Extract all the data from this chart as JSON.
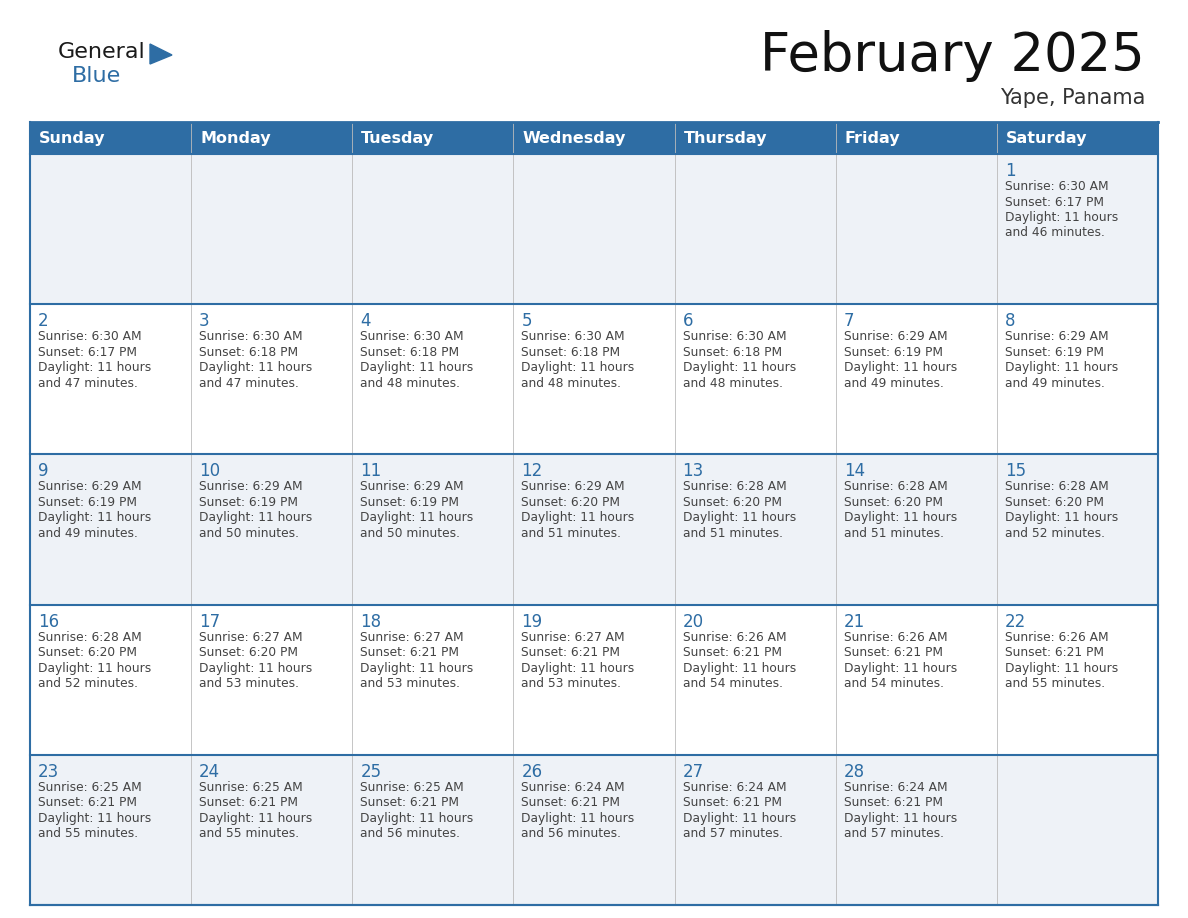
{
  "title": "February 2025",
  "subtitle": "Yape, Panama",
  "days_of_week": [
    "Sunday",
    "Monday",
    "Tuesday",
    "Wednesday",
    "Thursday",
    "Friday",
    "Saturday"
  ],
  "header_bg": "#2e6da4",
  "header_text": "#ffffff",
  "row_bg_even": "#eef2f7",
  "row_bg_odd": "#ffffff",
  "border_color": "#2e6da4",
  "text_color": "#444444",
  "day_num_color": "#2e6da4",
  "logo_general_color": "#1a1a1a",
  "logo_blue_color": "#2e6da4",
  "calendar_data": [
    [
      null,
      null,
      null,
      null,
      null,
      null,
      {
        "day": 1,
        "sunrise": "6:30 AM",
        "sunset": "6:17 PM",
        "daylight": "11 hours and 46 minutes."
      }
    ],
    [
      {
        "day": 2,
        "sunrise": "6:30 AM",
        "sunset": "6:17 PM",
        "daylight": "11 hours and 47 minutes."
      },
      {
        "day": 3,
        "sunrise": "6:30 AM",
        "sunset": "6:18 PM",
        "daylight": "11 hours and 47 minutes."
      },
      {
        "day": 4,
        "sunrise": "6:30 AM",
        "sunset": "6:18 PM",
        "daylight": "11 hours and 48 minutes."
      },
      {
        "day": 5,
        "sunrise": "6:30 AM",
        "sunset": "6:18 PM",
        "daylight": "11 hours and 48 minutes."
      },
      {
        "day": 6,
        "sunrise": "6:30 AM",
        "sunset": "6:18 PM",
        "daylight": "11 hours and 48 minutes."
      },
      {
        "day": 7,
        "sunrise": "6:29 AM",
        "sunset": "6:19 PM",
        "daylight": "11 hours and 49 minutes."
      },
      {
        "day": 8,
        "sunrise": "6:29 AM",
        "sunset": "6:19 PM",
        "daylight": "11 hours and 49 minutes."
      }
    ],
    [
      {
        "day": 9,
        "sunrise": "6:29 AM",
        "sunset": "6:19 PM",
        "daylight": "11 hours and 49 minutes."
      },
      {
        "day": 10,
        "sunrise": "6:29 AM",
        "sunset": "6:19 PM",
        "daylight": "11 hours and 50 minutes."
      },
      {
        "day": 11,
        "sunrise": "6:29 AM",
        "sunset": "6:19 PM",
        "daylight": "11 hours and 50 minutes."
      },
      {
        "day": 12,
        "sunrise": "6:29 AM",
        "sunset": "6:20 PM",
        "daylight": "11 hours and 51 minutes."
      },
      {
        "day": 13,
        "sunrise": "6:28 AM",
        "sunset": "6:20 PM",
        "daylight": "11 hours and 51 minutes."
      },
      {
        "day": 14,
        "sunrise": "6:28 AM",
        "sunset": "6:20 PM",
        "daylight": "11 hours and 51 minutes."
      },
      {
        "day": 15,
        "sunrise": "6:28 AM",
        "sunset": "6:20 PM",
        "daylight": "11 hours and 52 minutes."
      }
    ],
    [
      {
        "day": 16,
        "sunrise": "6:28 AM",
        "sunset": "6:20 PM",
        "daylight": "11 hours and 52 minutes."
      },
      {
        "day": 17,
        "sunrise": "6:27 AM",
        "sunset": "6:20 PM",
        "daylight": "11 hours and 53 minutes."
      },
      {
        "day": 18,
        "sunrise": "6:27 AM",
        "sunset": "6:21 PM",
        "daylight": "11 hours and 53 minutes."
      },
      {
        "day": 19,
        "sunrise": "6:27 AM",
        "sunset": "6:21 PM",
        "daylight": "11 hours and 53 minutes."
      },
      {
        "day": 20,
        "sunrise": "6:26 AM",
        "sunset": "6:21 PM",
        "daylight": "11 hours and 54 minutes."
      },
      {
        "day": 21,
        "sunrise": "6:26 AM",
        "sunset": "6:21 PM",
        "daylight": "11 hours and 54 minutes."
      },
      {
        "day": 22,
        "sunrise": "6:26 AM",
        "sunset": "6:21 PM",
        "daylight": "11 hours and 55 minutes."
      }
    ],
    [
      {
        "day": 23,
        "sunrise": "6:25 AM",
        "sunset": "6:21 PM",
        "daylight": "11 hours and 55 minutes."
      },
      {
        "day": 24,
        "sunrise": "6:25 AM",
        "sunset": "6:21 PM",
        "daylight": "11 hours and 55 minutes."
      },
      {
        "day": 25,
        "sunrise": "6:25 AM",
        "sunset": "6:21 PM",
        "daylight": "11 hours and 56 minutes."
      },
      {
        "day": 26,
        "sunrise": "6:24 AM",
        "sunset": "6:21 PM",
        "daylight": "11 hours and 56 minutes."
      },
      {
        "day": 27,
        "sunrise": "6:24 AM",
        "sunset": "6:21 PM",
        "daylight": "11 hours and 57 minutes."
      },
      {
        "day": 28,
        "sunrise": "6:24 AM",
        "sunset": "6:21 PM",
        "daylight": "11 hours and 57 minutes."
      },
      null
    ]
  ],
  "figsize": [
    11.88,
    9.18
  ],
  "dpi": 100
}
